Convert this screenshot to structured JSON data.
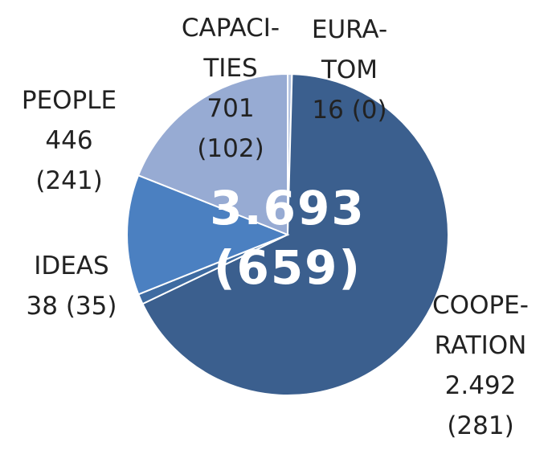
{
  "chart_data": {
    "type": "pie",
    "categories": [
      "EURA-TOM",
      "COOPE-RATION",
      "IDEAS",
      "PEOPLE",
      "CAPACI-TIES"
    ],
    "values": [
      16,
      2492,
      38,
      446,
      701
    ],
    "value_labels": [
      "16 (0)",
      "2.492 (281)",
      "38 (35)",
      "446 (241)",
      "701 (102)"
    ],
    "colors": [
      "#b4c3df",
      "#3b5f8e",
      "#3e6ba1",
      "#4b80c1",
      "#97abd3"
    ],
    "total_label": "3.693 (659)"
  }
}
